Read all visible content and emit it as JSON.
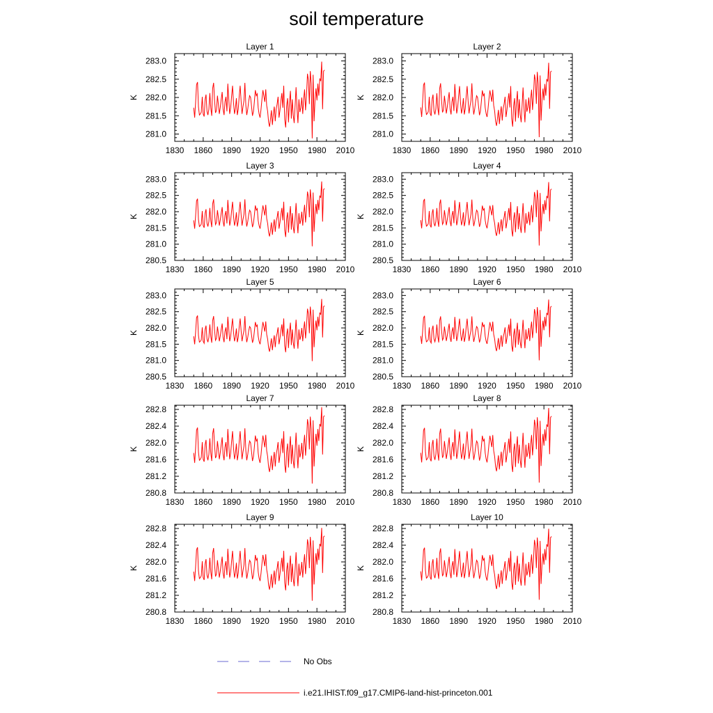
{
  "title": "soil temperature",
  "legend": [
    {
      "label": "No Obs",
      "color": "#6a6ad0",
      "style": "dashed"
    },
    {
      "label": "i.e21.IHIST.f09_g17.CMIP6-land-hist-princeton.001",
      "color": "#ff0000",
      "style": "solid"
    }
  ],
  "chart_data": [
    {
      "type": "line",
      "title": "Layer 1",
      "ylabel": "K",
      "xlim": [
        1830,
        2010
      ],
      "ylim": [
        280.8,
        283.2
      ],
      "xticks": [
        1830,
        1860,
        1890,
        1920,
        1950,
        1980,
        2010
      ],
      "yticks": [
        281.0,
        281.5,
        282.0,
        282.5,
        283.0
      ],
      "ytick_labels": [
        "281.0",
        "281.5",
        "282.0",
        "282.5",
        "283.0"
      ],
      "scale": 1.0,
      "shift": 0.0,
      "series": [
        {
          "color": "#ff0000"
        }
      ]
    },
    {
      "type": "line",
      "title": "Layer 2",
      "ylabel": "K",
      "xlim": [
        1830,
        2010
      ],
      "ylim": [
        280.8,
        283.2
      ],
      "xticks": [
        1830,
        1860,
        1890,
        1920,
        1950,
        1980,
        2010
      ],
      "yticks": [
        281.0,
        281.5,
        282.0,
        282.5,
        283.0
      ],
      "ytick_labels": [
        "281.0",
        "281.5",
        "282.0",
        "282.5",
        "283.0"
      ],
      "scale": 0.97,
      "shift": 0.0,
      "series": [
        {
          "color": "#ff0000"
        }
      ]
    },
    {
      "type": "line",
      "title": "Layer 3",
      "ylabel": "K",
      "xlim": [
        1830,
        2010
      ],
      "ylim": [
        280.5,
        283.2
      ],
      "xticks": [
        1830,
        1860,
        1890,
        1920,
        1950,
        1980,
        2010
      ],
      "yticks": [
        280.5,
        281.0,
        281.5,
        282.0,
        282.5,
        283.0
      ],
      "ytick_labels": [
        "280.5",
        "281.0",
        "281.5",
        "282.0",
        "282.5",
        "283.0"
      ],
      "scale": 0.95,
      "shift": 0.0,
      "series": [
        {
          "color": "#ff0000"
        }
      ]
    },
    {
      "type": "line",
      "title": "Layer 4",
      "ylabel": "K",
      "xlim": [
        1830,
        2010
      ],
      "ylim": [
        280.5,
        283.2
      ],
      "xticks": [
        1830,
        1860,
        1890,
        1920,
        1950,
        1980,
        2010
      ],
      "yticks": [
        280.5,
        281.0,
        281.5,
        282.0,
        282.5,
        283.0
      ],
      "ytick_labels": [
        "280.5",
        "281.0",
        "281.5",
        "282.0",
        "282.5",
        "283.0"
      ],
      "scale": 0.93,
      "shift": 0.0,
      "series": [
        {
          "color": "#ff0000"
        }
      ]
    },
    {
      "type": "line",
      "title": "Layer 5",
      "ylabel": "K",
      "xlim": [
        1830,
        2010
      ],
      "ylim": [
        280.5,
        283.2
      ],
      "xticks": [
        1830,
        1860,
        1890,
        1920,
        1950,
        1980,
        2010
      ],
      "yticks": [
        280.5,
        281.0,
        281.5,
        282.0,
        282.5,
        283.0
      ],
      "ytick_labels": [
        "280.5",
        "281.0",
        "281.5",
        "282.0",
        "282.5",
        "283.0"
      ],
      "scale": 0.91,
      "shift": 0.0,
      "series": [
        {
          "color": "#ff0000"
        }
      ]
    },
    {
      "type": "line",
      "title": "Layer 6",
      "ylabel": "K",
      "xlim": [
        1830,
        2010
      ],
      "ylim": [
        280.5,
        283.2
      ],
      "xticks": [
        1830,
        1860,
        1890,
        1920,
        1950,
        1980,
        2010
      ],
      "yticks": [
        280.5,
        281.0,
        281.5,
        282.0,
        282.5,
        283.0
      ],
      "ytick_labels": [
        "280.5",
        "281.0",
        "281.5",
        "282.0",
        "282.5",
        "283.0"
      ],
      "scale": 0.89,
      "shift": 0.0,
      "series": [
        {
          "color": "#ff0000"
        }
      ]
    },
    {
      "type": "line",
      "title": "Layer 7",
      "ylabel": "K",
      "xlim": [
        1830,
        2010
      ],
      "ylim": [
        280.8,
        282.9
      ],
      "xticks": [
        1830,
        1860,
        1890,
        1920,
        1950,
        1980,
        2010
      ],
      "yticks": [
        280.8,
        281.2,
        281.6,
        282.0,
        282.4,
        282.8
      ],
      "ytick_labels": [
        "280.8",
        "281.2",
        "281.6",
        "282.0",
        "282.4",
        "282.8"
      ],
      "scale": 0.87,
      "shift": 0.0,
      "series": [
        {
          "color": "#ff0000"
        }
      ]
    },
    {
      "type": "line",
      "title": "Layer 8",
      "ylabel": "K",
      "xlim": [
        1830,
        2010
      ],
      "ylim": [
        280.8,
        282.9
      ],
      "xticks": [
        1830,
        1860,
        1890,
        1920,
        1950,
        1980,
        2010
      ],
      "yticks": [
        280.8,
        281.2,
        281.6,
        282.0,
        282.4,
        282.8
      ],
      "ytick_labels": [
        "280.8",
        "281.2",
        "281.6",
        "282.0",
        "282.4",
        "282.8"
      ],
      "scale": 0.85,
      "shift": 0.0,
      "series": [
        {
          "color": "#ff0000"
        }
      ]
    },
    {
      "type": "line",
      "title": "Layer 9",
      "ylabel": "K",
      "xlim": [
        1830,
        2010
      ],
      "ylim": [
        280.8,
        282.9
      ],
      "xticks": [
        1830,
        1860,
        1890,
        1920,
        1950,
        1980,
        2010
      ],
      "yticks": [
        280.8,
        281.2,
        281.6,
        282.0,
        282.4,
        282.8
      ],
      "ytick_labels": [
        "280.8",
        "281.2",
        "281.6",
        "282.0",
        "282.4",
        "282.8"
      ],
      "scale": 0.83,
      "shift": 0.0,
      "series": [
        {
          "color": "#ff0000"
        }
      ]
    },
    {
      "type": "line",
      "title": "Layer 10",
      "ylabel": "K",
      "xlim": [
        1830,
        2010
      ],
      "ylim": [
        280.8,
        282.9
      ],
      "xticks": [
        1830,
        1860,
        1890,
        1920,
        1950,
        1980,
        2010
      ],
      "yticks": [
        280.8,
        281.2,
        281.6,
        282.0,
        282.4,
        282.8
      ],
      "ytick_labels": [
        "280.8",
        "281.2",
        "281.6",
        "282.0",
        "282.4",
        "282.8"
      ],
      "scale": 0.81,
      "shift": 0.0,
      "series": [
        {
          "color": "#ff0000"
        }
      ]
    }
  ],
  "base_series": {
    "x": [
      1850,
      1851,
      1852,
      1853,
      1854,
      1855,
      1856,
      1857,
      1858,
      1859,
      1860,
      1861,
      1862,
      1863,
      1864,
      1865,
      1866,
      1867,
      1868,
      1869,
      1870,
      1871,
      1872,
      1873,
      1874,
      1875,
      1876,
      1877,
      1878,
      1879,
      1880,
      1881,
      1882,
      1883,
      1884,
      1885,
      1886,
      1887,
      1888,
      1889,
      1890,
      1891,
      1892,
      1893,
      1894,
      1895,
      1896,
      1897,
      1898,
      1899,
      1900,
      1901,
      1902,
      1903,
      1904,
      1905,
      1906,
      1907,
      1908,
      1909,
      1910,
      1911,
      1912,
      1913,
      1914,
      1915,
      1916,
      1917,
      1918,
      1919,
      1920,
      1921,
      1922,
      1923,
      1924,
      1925,
      1926,
      1927,
      1928,
      1929,
      1930,
      1931,
      1932,
      1933,
      1934,
      1935,
      1936,
      1937,
      1938,
      1939,
      1940,
      1941,
      1942,
      1943,
      1944,
      1945,
      1946,
      1947,
      1948,
      1949,
      1950,
      1951,
      1952,
      1953,
      1954,
      1955,
      1956,
      1957,
      1958,
      1959,
      1960,
      1961,
      1962,
      1963,
      1964,
      1965,
      1966,
      1967,
      1968,
      1969,
      1970,
      1971,
      1972,
      1973,
      1974,
      1975,
      1976,
      1977,
      1978,
      1979,
      1980,
      1981,
      1982,
      1983,
      1984,
      1985,
      1986,
      1987,
      1988
    ],
    "y": [
      281.72,
      281.45,
      281.85,
      282.35,
      282.42,
      281.75,
      281.52,
      281.55,
      281.6,
      282.02,
      281.55,
      281.48,
      281.95,
      282.08,
      281.62,
      281.52,
      281.68,
      282.12,
      281.72,
      281.5,
      282.25,
      282.4,
      281.92,
      281.58,
      281.65,
      282.05,
      281.82,
      281.55,
      281.72,
      281.95,
      282.15,
      281.68,
      281.52,
      281.88,
      282.02,
      281.62,
      282.38,
      281.95,
      281.55,
      281.72,
      282.05,
      282.32,
      281.85,
      281.55,
      281.7,
      281.98,
      281.52,
      281.68,
      282.05,
      282.32,
      281.9,
      281.55,
      281.75,
      281.92,
      282.4,
      281.78,
      281.52,
      281.68,
      281.9,
      282.05,
      282.0,
      281.75,
      281.5,
      281.62,
      281.88,
      282.2,
      282.05,
      282.1,
      281.72,
      281.55,
      281.45,
      281.68,
      281.95,
      282.2,
      282.05,
      281.88,
      282.22,
      281.78,
      281.62,
      281.32,
      281.2,
      281.42,
      281.65,
      281.25,
      281.55,
      281.75,
      281.35,
      281.68,
      281.82,
      282.02,
      281.45,
      281.65,
      281.9,
      282.12,
      281.72,
      282.32,
      281.4,
      281.18,
      281.75,
      281.98,
      281.32,
      281.85,
      282.18,
      281.42,
      281.95,
      281.52,
      281.3,
      281.8,
      282.28,
      281.68,
      281.3,
      281.95,
      281.6,
      281.72,
      282.0,
      281.55,
      281.95,
      282.22,
      281.65,
      282.05,
      282.65,
      282.48,
      281.82,
      282.72,
      282.38,
      280.88,
      282.62,
      281.35,
      281.92,
      282.25,
      281.92,
      282.38,
      282.05,
      282.52,
      282.45,
      282.98,
      281.68,
      282.72,
      282.75
    ]
  }
}
